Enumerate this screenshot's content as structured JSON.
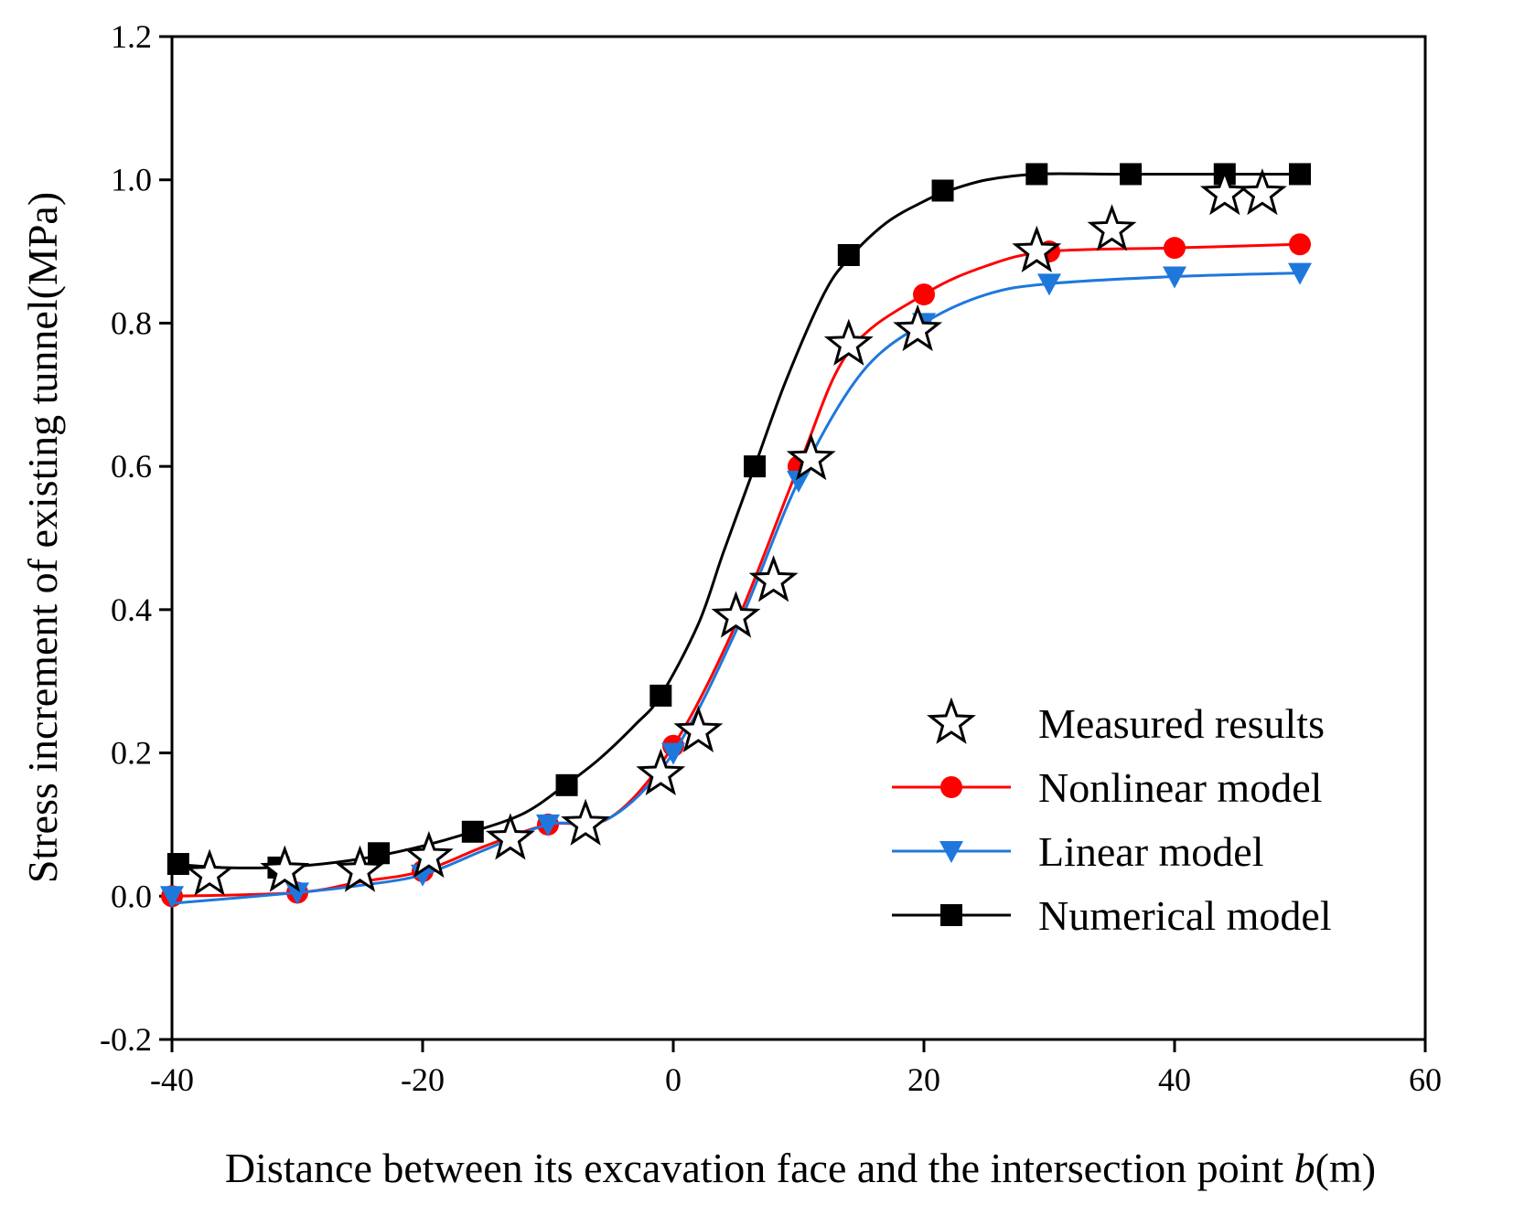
{
  "chart_data": {
    "type": "line",
    "title": "",
    "xlabel_prefix": "Distance between its excavation face and the intersection point ",
    "xlabel_var": "b",
    "xlabel_suffix": "(m)",
    "ylabel": "Stress increment of existing tunnel(MPa)",
    "xlim": [
      -40,
      60
    ],
    "ylim": [
      -0.2,
      1.2
    ],
    "xticks": [
      -40,
      -20,
      0,
      20,
      40,
      60
    ],
    "xtick_labels": [
      "-40",
      "-20",
      "0",
      "20",
      "40",
      "60"
    ],
    "yticks": [
      -0.2,
      0.0,
      0.2,
      0.4,
      0.6,
      0.8,
      1.0,
      1.2
    ],
    "ytick_labels": [
      "-0.2",
      "0.0",
      "0.2",
      "0.4",
      "0.6",
      "0.8",
      "1.0",
      "1.2"
    ],
    "grid": false,
    "legend_position": "bottom-right",
    "series": [
      {
        "name": "Measured results",
        "marker": "star",
        "color": "#000000",
        "line": false,
        "points": [
          [
            -37,
            0.03
          ],
          [
            -31,
            0.035
          ],
          [
            -25,
            0.035
          ],
          [
            -19.5,
            0.055
          ],
          [
            -13,
            0.08
          ],
          [
            -7,
            0.1
          ],
          [
            -1,
            0.17
          ],
          [
            2,
            0.23
          ],
          [
            5,
            0.39
          ],
          [
            8,
            0.44
          ],
          [
            11,
            0.61
          ],
          [
            14,
            0.77
          ],
          [
            19.5,
            0.79
          ],
          [
            29,
            0.9
          ],
          [
            35,
            0.93
          ],
          [
            44,
            0.98
          ],
          [
            47,
            0.98
          ]
        ]
      },
      {
        "name": "Nonlinear model",
        "marker": "circle",
        "color": "#ff0000",
        "line": true,
        "curve": [
          [
            -40,
            0.0
          ],
          [
            -30,
            0.005
          ],
          [
            -25,
            0.02
          ],
          [
            -20,
            0.035
          ],
          [
            -15,
            0.07
          ],
          [
            -10,
            0.1
          ],
          [
            -5,
            0.11
          ],
          [
            0,
            0.21
          ],
          [
            5,
            0.38
          ],
          [
            10,
            0.6
          ],
          [
            14,
            0.76
          ],
          [
            20,
            0.84
          ],
          [
            25,
            0.88
          ],
          [
            30,
            0.9
          ],
          [
            40,
            0.905
          ],
          [
            50,
            0.91
          ]
        ],
        "points": [
          [
            -40,
            0.0
          ],
          [
            -30,
            0.005
          ],
          [
            -20,
            0.035
          ],
          [
            -10,
            0.1
          ],
          [
            0,
            0.21
          ],
          [
            10,
            0.6
          ],
          [
            20,
            0.84
          ],
          [
            30,
            0.9
          ],
          [
            40,
            0.905
          ],
          [
            50,
            0.91
          ]
        ]
      },
      {
        "name": "Linear model",
        "marker": "triangle-down",
        "color": "#1e78dc",
        "line": true,
        "curve": [
          [
            -40,
            -0.01
          ],
          [
            -30,
            0.005
          ],
          [
            -25,
            0.015
          ],
          [
            -20,
            0.03
          ],
          [
            -15,
            0.065
          ],
          [
            -10,
            0.1
          ],
          [
            -5,
            0.11
          ],
          [
            0,
            0.2
          ],
          [
            5,
            0.37
          ],
          [
            10,
            0.58
          ],
          [
            15,
            0.73
          ],
          [
            20,
            0.8
          ],
          [
            25,
            0.84
          ],
          [
            30,
            0.855
          ],
          [
            40,
            0.865
          ],
          [
            50,
            0.87
          ]
        ],
        "points": [
          [
            -40,
            0.0
          ],
          [
            -30,
            0.005
          ],
          [
            -20,
            0.03
          ],
          [
            -10,
            0.1
          ],
          [
            0,
            0.2
          ],
          [
            10,
            0.58
          ],
          [
            20,
            0.8
          ],
          [
            30,
            0.855
          ],
          [
            40,
            0.865
          ],
          [
            50,
            0.87
          ]
        ]
      },
      {
        "name": "Numerical model",
        "marker": "square",
        "color": "#000000",
        "line": true,
        "curve": [
          [
            -40,
            0.045
          ],
          [
            -36,
            0.04
          ],
          [
            -32,
            0.04
          ],
          [
            -28,
            0.045
          ],
          [
            -24,
            0.055
          ],
          [
            -20,
            0.07
          ],
          [
            -16,
            0.09
          ],
          [
            -12,
            0.115
          ],
          [
            -9,
            0.15
          ],
          [
            -6,
            0.19
          ],
          [
            -3,
            0.24
          ],
          [
            -1,
            0.28
          ],
          [
            2,
            0.38
          ],
          [
            4,
            0.48
          ],
          [
            6.5,
            0.6
          ],
          [
            9,
            0.72
          ],
          [
            12,
            0.84
          ],
          [
            14,
            0.89
          ],
          [
            17,
            0.94
          ],
          [
            20,
            0.97
          ],
          [
            22,
            0.985
          ],
          [
            25,
            1.0
          ],
          [
            29,
            1.008
          ],
          [
            35,
            1.008
          ],
          [
            44,
            1.008
          ],
          [
            50,
            1.008
          ]
        ],
        "points": [
          [
            -39.5,
            0.045
          ],
          [
            -31.5,
            0.04
          ],
          [
            -23.5,
            0.06
          ],
          [
            -16,
            0.09
          ],
          [
            -8.5,
            0.155
          ],
          [
            -1,
            0.28
          ],
          [
            6.5,
            0.6
          ],
          [
            14,
            0.895
          ],
          [
            21.5,
            0.985
          ],
          [
            29,
            1.008
          ],
          [
            36.5,
            1.008
          ],
          [
            44,
            1.008
          ],
          [
            50,
            1.008
          ]
        ]
      }
    ]
  }
}
